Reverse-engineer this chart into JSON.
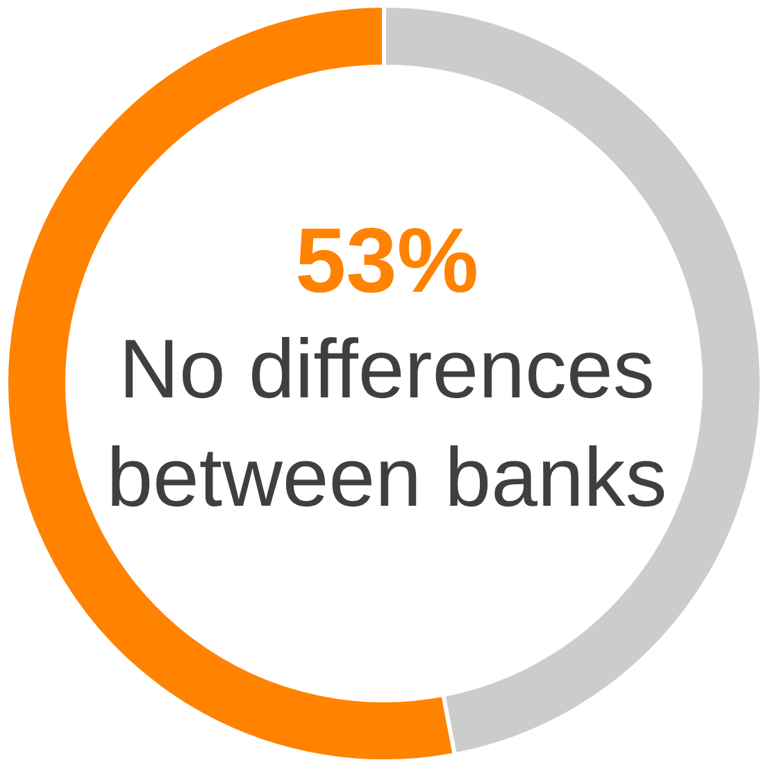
{
  "chart_data": {
    "type": "donut",
    "categories": [
      "No differences between banks",
      null
    ],
    "values": [
      53,
      47
    ],
    "colors": [
      "#ff8200",
      "#cccccc"
    ],
    "value_labels": [
      "53%",
      null
    ]
  }
}
